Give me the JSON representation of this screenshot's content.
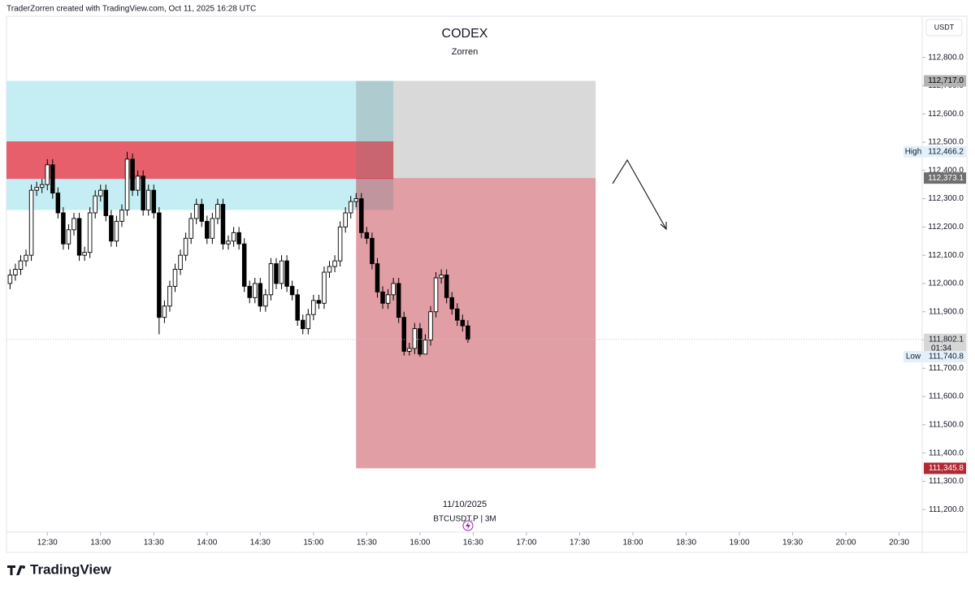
{
  "header": {
    "attribution": "TraderZorren created with TradingView.com, Oct 11, 2025 16:28 UTC",
    "brand": "TradingView"
  },
  "chart_data": {
    "type": "candlestick",
    "title": "CODEX",
    "subtitle": "Zorren",
    "date_label": "11/10/2025",
    "symbol_label": "BTCUSDT.P | 3M",
    "currency": "USDT",
    "x": [
      "12:09",
      "12:12",
      "12:15",
      "12:18",
      "12:21",
      "12:24",
      "12:27",
      "12:30",
      "12:33",
      "12:36",
      "12:39",
      "12:42",
      "12:45",
      "12:48",
      "12:51",
      "12:54",
      "12:57",
      "13:00",
      "13:03",
      "13:06",
      "13:09",
      "13:12",
      "13:15",
      "13:18",
      "13:21",
      "13:24",
      "13:27",
      "13:30",
      "13:33",
      "13:36",
      "13:39",
      "13:42",
      "13:45",
      "13:48",
      "13:51",
      "13:54",
      "13:57",
      "14:00",
      "14:03",
      "14:06",
      "14:09",
      "14:12",
      "14:15",
      "14:18",
      "14:21",
      "14:24",
      "14:27",
      "14:30",
      "14:33",
      "14:36",
      "14:39",
      "14:42",
      "14:45",
      "14:48",
      "14:51",
      "14:54",
      "14:57",
      "15:00",
      "15:03",
      "15:06",
      "15:09",
      "15:12",
      "15:15",
      "15:18",
      "15:21",
      "15:24",
      "15:27",
      "15:30",
      "15:33",
      "15:36",
      "15:39",
      "15:42",
      "15:45",
      "15:48",
      "15:51",
      "15:54",
      "15:57",
      "16:00",
      "16:03",
      "16:06",
      "16:09",
      "16:12",
      "16:15",
      "16:18",
      "16:21",
      "16:24",
      "16:27"
    ],
    "open": [
      112000,
      112030,
      112050,
      112080,
      112100,
      112330,
      112340,
      112350,
      112420,
      112320,
      112250,
      112140,
      112190,
      112230,
      112100,
      112110,
      112250,
      112310,
      112330,
      112240,
      112150,
      112220,
      112260,
      112440,
      112330,
      112380,
      112260,
      112330,
      112250,
      111880,
      111920,
      111990,
      112050,
      112100,
      112160,
      112230,
      112280,
      112220,
      112160,
      112230,
      112280,
      112140,
      112150,
      112180,
      112140,
      111990,
      111950,
      112000,
      111920,
      111960,
      112070,
      112000,
      112080,
      111990,
      111960,
      111870,
      111840,
      111890,
      111940,
      111930,
      112040,
      112060,
      112080,
      112200,
      112250,
      112290,
      112300,
      112180,
      112160,
      112070,
      111970,
      111930,
      111960,
      112000,
      111880,
      111760,
      111770,
      111840,
      111750,
      111800,
      111900,
      112020,
      112030,
      111950,
      111910,
      111870,
      111850
    ],
    "high": [
      112050,
      112070,
      112100,
      112120,
      112350,
      112360,
      112370,
      112440,
      112440,
      112340,
      112270,
      112210,
      112250,
      112250,
      112130,
      112270,
      112330,
      112350,
      112350,
      112260,
      112240,
      112280,
      112466.2,
      112460,
      112400,
      112400,
      112350,
      112350,
      112270,
      111940,
      112010,
      112070,
      112120,
      112180,
      112250,
      112300,
      112300,
      112240,
      112250,
      112300,
      112300,
      112170,
      112200,
      112200,
      112160,
      112010,
      112020,
      112020,
      111980,
      112090,
      112090,
      112100,
      112100,
      112010,
      111980,
      111890,
      111910,
      111960,
      111960,
      112060,
      112080,
      112100,
      112220,
      112270,
      112310,
      112320,
      112320,
      112200,
      112180,
      112090,
      111990,
      111980,
      112020,
      112020,
      111900,
      111790,
      111860,
      111860,
      111820,
      111920,
      112040,
      112050,
      112050,
      111970,
      111930,
      111890,
      111870
    ],
    "low": [
      111980,
      112010,
      112030,
      112060,
      112080,
      112310,
      112320,
      112330,
      112300,
      112230,
      112120,
      112120,
      112170,
      112080,
      112080,
      112090,
      112230,
      112290,
      112220,
      112130,
      112130,
      112200,
      112240,
      112310,
      112310,
      112240,
      112240,
      112230,
      111820,
      111860,
      111900,
      111970,
      112030,
      112080,
      112140,
      112210,
      112200,
      112140,
      112140,
      112210,
      112120,
      112120,
      112130,
      112120,
      111970,
      111930,
      111930,
      111900,
      111900,
      111940,
      111980,
      111980,
      111970,
      111940,
      111850,
      111820,
      111820,
      111870,
      111910,
      111910,
      112020,
      112040,
      112060,
      112180,
      112230,
      112270,
      112160,
      112140,
      112050,
      111950,
      111910,
      111910,
      111940,
      111860,
      111745,
      111745,
      111750,
      111740.8,
      111760,
      111780,
      111880,
      112000,
      111930,
      111890,
      111850,
      111830,
      111790
    ],
    "close": [
      112030,
      112050,
      112080,
      112100,
      112330,
      112340,
      112350,
      112420,
      112320,
      112250,
      112140,
      112190,
      112230,
      112100,
      112110,
      112250,
      112310,
      112330,
      112240,
      112150,
      112220,
      112260,
      112440,
      112330,
      112380,
      112260,
      112330,
      112250,
      111880,
      111920,
      111990,
      112050,
      112100,
      112160,
      112230,
      112280,
      112220,
      112160,
      112230,
      112280,
      112140,
      112150,
      112180,
      112140,
      111990,
      111950,
      112000,
      111920,
      111960,
      112070,
      112000,
      112080,
      111990,
      111960,
      111870,
      111840,
      111890,
      111940,
      111930,
      112040,
      112060,
      112080,
      112200,
      112250,
      112290,
      112300,
      112180,
      112160,
      112070,
      111970,
      111930,
      111960,
      112000,
      111880,
      111760,
      111770,
      111840,
      111750,
      111800,
      111900,
      112020,
      112030,
      111950,
      111910,
      111870,
      111850,
      111802.1
    ],
    "up_color": "#ffffff",
    "down_color": "#000000",
    "xlim": [
      "12:07",
      "20:43"
    ],
    "xticks": [
      "12:30",
      "13:00",
      "13:30",
      "14:00",
      "14:30",
      "15:00",
      "15:30",
      "16:00",
      "16:30",
      "17:00",
      "17:30",
      "18:00",
      "18:30",
      "19:00",
      "19:30",
      "20:00",
      "20:30"
    ],
    "ylim": [
      111120,
      112940
    ],
    "yticks": [
      {
        "value": 111200,
        "label": "111,200.0"
      },
      {
        "value": 111300,
        "label": "111,300.0"
      },
      {
        "value": 111400,
        "label": "111,400.0"
      },
      {
        "value": 111500,
        "label": "111,500.0"
      },
      {
        "value": 111600,
        "label": "111,600.0"
      },
      {
        "value": 111700,
        "label": "111,700.0"
      },
      {
        "value": 111800,
        "label": "111,800.0"
      },
      {
        "value": 111900,
        "label": "111,900.0"
      },
      {
        "value": 112000,
        "label": "112,000.0"
      },
      {
        "value": 112100,
        "label": "112,100.0"
      },
      {
        "value": 112200,
        "label": "112,200.0"
      },
      {
        "value": 112300,
        "label": "112,300.0"
      },
      {
        "value": 112400,
        "label": "112,400.0"
      },
      {
        "value": 112500,
        "label": "112,500.0"
      },
      {
        "value": 112600,
        "label": "112,600.0"
      },
      {
        "value": 112700,
        "label": "112,700.0"
      },
      {
        "value": 112800,
        "label": "112,800.0"
      }
    ],
    "zones": [
      {
        "from": "12:07",
        "to": "15:45",
        "top": 112717,
        "bottom": 112260,
        "color": "#c4eef3"
      },
      {
        "from": "12:07",
        "to": "15:45",
        "top": 112503,
        "bottom": 112370,
        "color": "#e85f6c"
      },
      {
        "from": "15:24",
        "to": "17:39",
        "top": 112717,
        "bottom": 112373.1,
        "color": "rgba(120,120,120,0.28)"
      },
      {
        "from": "15:24",
        "to": "17:39",
        "top": 112373.1,
        "bottom": 111345.8,
        "color": "rgba(190,40,55,0.45)"
      }
    ],
    "price_labels": [
      {
        "value": 112717,
        "label": "112,717.0",
        "color": "#b2b2b2",
        "text_color": "#000000"
      },
      {
        "value": 112466.2,
        "label": "112,466.2",
        "tag": "High",
        "color": "#e3f0fb",
        "text_color": "#131722"
      },
      {
        "value": 112373.1,
        "label": "112,373.1",
        "color": "#6f6f6f",
        "text_color": "#ffffff"
      },
      {
        "value": 111802.1,
        "label": "111,802.1",
        "countdown": "01:34",
        "color": "#d6d6d6",
        "text_color": "#131722"
      },
      {
        "value": 111740.8,
        "label": "111,740.8",
        "tag": "Low",
        "color": "#e3f0fb",
        "text_color": "#131722"
      },
      {
        "value": 111345.8,
        "label": "111,345.8",
        "color": "#b22833",
        "text_color": "#ffffff"
      }
    ]
  }
}
